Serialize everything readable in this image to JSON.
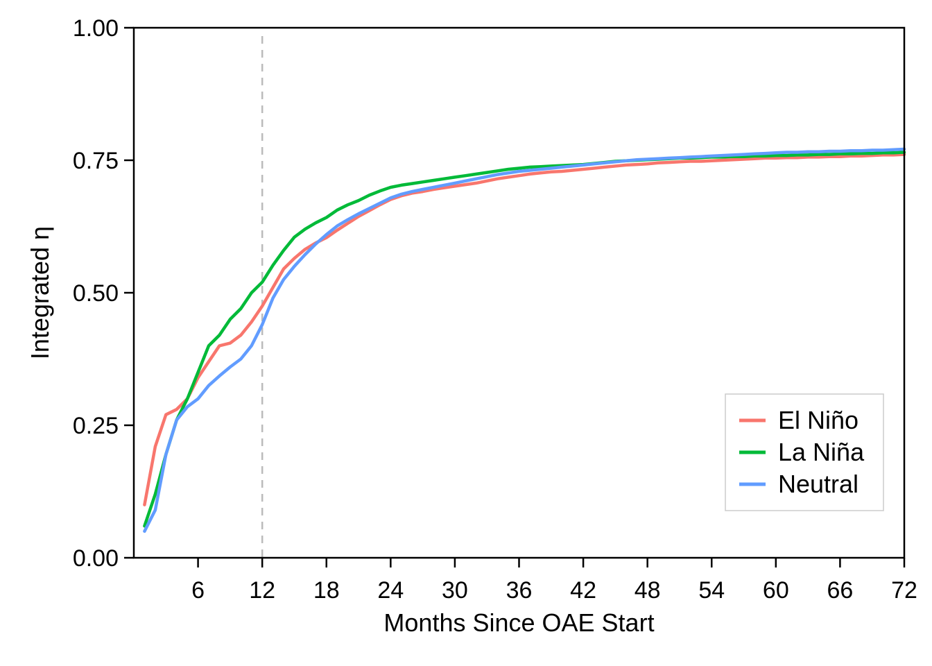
{
  "chart_data": {
    "type": "line",
    "xlabel": "Months Since OAE Start",
    "ylabel": "Integrated η",
    "xlim": [
      0,
      72
    ],
    "ylim": [
      0,
      1
    ],
    "xticks": [
      6,
      12,
      18,
      24,
      30,
      36,
      42,
      48,
      54,
      60,
      66,
      72
    ],
    "yticks": [
      0.0,
      0.25,
      0.5,
      0.75,
      1.0
    ],
    "ytick_labels": [
      "0.00",
      "0.25",
      "0.50",
      "0.75",
      "1.00"
    ],
    "reference_line": {
      "x": 12,
      "style": "dashed",
      "color": "#bbbbbb"
    },
    "legend": {
      "position": "bottom-right"
    },
    "grid": false,
    "x": [
      1,
      2,
      3,
      4,
      5,
      6,
      7,
      8,
      9,
      10,
      11,
      12,
      13,
      14,
      15,
      16,
      17,
      18,
      19,
      20,
      21,
      22,
      23,
      24,
      25,
      26,
      27,
      28,
      29,
      30,
      31,
      32,
      33,
      34,
      35,
      36,
      37,
      38,
      39,
      40,
      41,
      42,
      43,
      44,
      45,
      46,
      47,
      48,
      49,
      50,
      51,
      52,
      53,
      54,
      55,
      56,
      57,
      58,
      59,
      60,
      61,
      62,
      63,
      64,
      65,
      66,
      67,
      68,
      69,
      70,
      71,
      72
    ],
    "series": [
      {
        "name": "El Niño",
        "color": "#F8766D",
        "values": [
          0.1,
          0.21,
          0.27,
          0.28,
          0.3,
          0.34,
          0.37,
          0.4,
          0.405,
          0.42,
          0.445,
          0.475,
          0.51,
          0.545,
          0.565,
          0.582,
          0.594,
          0.604,
          0.618,
          0.631,
          0.644,
          0.655,
          0.666,
          0.676,
          0.683,
          0.688,
          0.691,
          0.695,
          0.698,
          0.701,
          0.704,
          0.707,
          0.711,
          0.715,
          0.718,
          0.721,
          0.724,
          0.726,
          0.728,
          0.729,
          0.731,
          0.733,
          0.735,
          0.737,
          0.739,
          0.741,
          0.742,
          0.743,
          0.745,
          0.746,
          0.747,
          0.748,
          0.748,
          0.749,
          0.75,
          0.751,
          0.752,
          0.753,
          0.754,
          0.754,
          0.755,
          0.755,
          0.756,
          0.756,
          0.757,
          0.757,
          0.758,
          0.758,
          0.759,
          0.76,
          0.76,
          0.761
        ]
      },
      {
        "name": "La Niña",
        "color": "#00BA38",
        "values": [
          0.06,
          0.12,
          0.195,
          0.26,
          0.3,
          0.35,
          0.4,
          0.42,
          0.45,
          0.47,
          0.5,
          0.52,
          0.552,
          0.58,
          0.605,
          0.62,
          0.632,
          0.642,
          0.656,
          0.666,
          0.674,
          0.684,
          0.692,
          0.699,
          0.703,
          0.706,
          0.709,
          0.712,
          0.715,
          0.718,
          0.721,
          0.724,
          0.727,
          0.73,
          0.733,
          0.735,
          0.737,
          0.738,
          0.739,
          0.74,
          0.741,
          0.742,
          0.744,
          0.746,
          0.748,
          0.749,
          0.75,
          0.751,
          0.752,
          0.753,
          0.754,
          0.754,
          0.755,
          0.756,
          0.756,
          0.757,
          0.757,
          0.758,
          0.758,
          0.759,
          0.759,
          0.76,
          0.76,
          0.761,
          0.761,
          0.762,
          0.762,
          0.763,
          0.763,
          0.764,
          0.764,
          0.765
        ]
      },
      {
        "name": "Neutral",
        "color": "#619CFF",
        "values": [
          0.05,
          0.09,
          0.195,
          0.26,
          0.285,
          0.3,
          0.325,
          0.343,
          0.36,
          0.375,
          0.4,
          0.44,
          0.49,
          0.525,
          0.55,
          0.572,
          0.592,
          0.61,
          0.626,
          0.638,
          0.649,
          0.659,
          0.669,
          0.679,
          0.686,
          0.691,
          0.695,
          0.699,
          0.703,
          0.707,
          0.711,
          0.715,
          0.719,
          0.723,
          0.726,
          0.729,
          0.731,
          0.733,
          0.735,
          0.737,
          0.739,
          0.741,
          0.743,
          0.745,
          0.747,
          0.749,
          0.751,
          0.752,
          0.753,
          0.754,
          0.755,
          0.756,
          0.757,
          0.758,
          0.759,
          0.76,
          0.761,
          0.762,
          0.763,
          0.764,
          0.765,
          0.765,
          0.766,
          0.766,
          0.767,
          0.767,
          0.768,
          0.768,
          0.769,
          0.769,
          0.77,
          0.771
        ]
      }
    ]
  }
}
